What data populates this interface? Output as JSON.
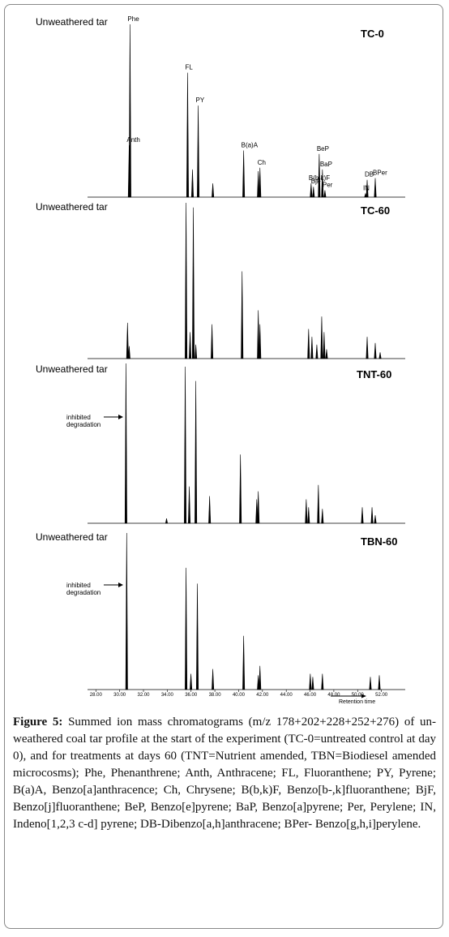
{
  "figure": {
    "xlim": [
      27.3,
      54
    ],
    "xticks": [
      {
        "value": 28,
        "label": "28.00"
      },
      {
        "value": 30,
        "label": "30.00"
      },
      {
        "value": 32,
        "label": "32.00"
      },
      {
        "value": 34,
        "label": "34.00"
      },
      {
        "value": 36,
        "label": "36.00"
      },
      {
        "value": 38,
        "label": "38.00"
      },
      {
        "value": 40,
        "label": "40.00"
      },
      {
        "value": 42,
        "label": "42.00"
      },
      {
        "value": 44,
        "label": "44.00"
      },
      {
        "value": 46,
        "label": "46.00"
      },
      {
        "value": 48,
        "label": "48.00"
      },
      {
        "value": 50,
        "label": "50.00"
      },
      {
        "value": 52,
        "label": "52.00"
      }
    ],
    "x_axis_label": "Retention time",
    "panels": [
      {
        "sample_label": "Unweathered tar",
        "name": "TC-0",
        "peaks": [
          {
            "x": 30.87,
            "height": 100,
            "label": "Phe"
          },
          {
            "x": 30.8,
            "height": 30,
            "label": "Anth"
          },
          {
            "x": 35.71,
            "height": 72,
            "label": "FL"
          },
          {
            "x": 36.12,
            "height": 16
          },
          {
            "x": 36.6,
            "height": 53,
            "label": "PY"
          },
          {
            "x": 37.83,
            "height": 8
          },
          {
            "x": 40.42,
            "height": 27,
            "label": "B(a)A"
          },
          {
            "x": 41.65,
            "height": 15
          },
          {
            "x": 41.79,
            "height": 17,
            "label": "Ch"
          },
          {
            "x": 46.09,
            "height": 8,
            "label": "B(b,k)F"
          },
          {
            "x": 46.29,
            "height": 6,
            "label": "BjF"
          },
          {
            "x": 46.77,
            "height": 25,
            "label": "BeP"
          },
          {
            "x": 47.04,
            "height": 16,
            "label": "BaP"
          },
          {
            "x": 47.25,
            "height": 4,
            "label": "Per"
          },
          {
            "x": 50.66,
            "height": 2,
            "label": "IN"
          },
          {
            "x": 50.8,
            "height": 10,
            "label": "DB"
          },
          {
            "x": 51.48,
            "height": 11,
            "label": "BPer"
          }
        ]
      },
      {
        "sample_label": "Unweathered tar",
        "name": "TC-60",
        "peaks": [
          {
            "x": 30.66,
            "height": 23
          },
          {
            "x": 30.8,
            "height": 8
          },
          {
            "x": 35.58,
            "height": 100
          },
          {
            "x": 35.92,
            "height": 17
          },
          {
            "x": 36.19,
            "height": 97
          },
          {
            "x": 36.4,
            "height": 9
          },
          {
            "x": 37.76,
            "height": 22
          },
          {
            "x": 40.29,
            "height": 56
          },
          {
            "x": 41.65,
            "height": 31
          },
          {
            "x": 41.79,
            "height": 22
          },
          {
            "x": 45.88,
            "height": 19
          },
          {
            "x": 46.16,
            "height": 14
          },
          {
            "x": 46.57,
            "height": 9
          },
          {
            "x": 46.98,
            "height": 27
          },
          {
            "x": 47.18,
            "height": 17
          },
          {
            "x": 47.39,
            "height": 6
          },
          {
            "x": 50.8,
            "height": 14
          },
          {
            "x": 51.48,
            "height": 10
          },
          {
            "x": 51.89,
            "height": 4
          }
        ]
      },
      {
        "sample_label": "Unweathered tar",
        "name": "TNT-60",
        "annotation": "inhibited degradation",
        "peaks": [
          {
            "x": 30.53,
            "height": 100
          },
          {
            "x": 33.94,
            "height": 3
          },
          {
            "x": 35.51,
            "height": 98
          },
          {
            "x": 35.85,
            "height": 23
          },
          {
            "x": 36.4,
            "height": 89
          },
          {
            "x": 37.56,
            "height": 17
          },
          {
            "x": 40.15,
            "height": 43
          },
          {
            "x": 41.52,
            "height": 15
          },
          {
            "x": 41.65,
            "height": 20
          },
          {
            "x": 45.68,
            "height": 15
          },
          {
            "x": 45.88,
            "height": 10
          },
          {
            "x": 46.7,
            "height": 24
          },
          {
            "x": 47.04,
            "height": 9
          },
          {
            "x": 50.39,
            "height": 10
          },
          {
            "x": 51.21,
            "height": 10
          },
          {
            "x": 51.48,
            "height": 5
          }
        ]
      },
      {
        "sample_label": "Unweathered tar",
        "name": "TBN-60",
        "annotation": "inhibited degradation",
        "peaks": [
          {
            "x": 30.59,
            "height": 99
          },
          {
            "x": 35.58,
            "height": 77
          },
          {
            "x": 35.99,
            "height": 10
          },
          {
            "x": 36.53,
            "height": 67
          },
          {
            "x": 37.83,
            "height": 13
          },
          {
            "x": 40.42,
            "height": 34
          },
          {
            "x": 41.65,
            "height": 9
          },
          {
            "x": 41.79,
            "height": 15
          },
          {
            "x": 46.02,
            "height": 10
          },
          {
            "x": 46.23,
            "height": 8
          },
          {
            "x": 47.04,
            "height": 10
          },
          {
            "x": 51.07,
            "height": 8
          },
          {
            "x": 51.82,
            "height": 9
          }
        ]
      }
    ]
  },
  "caption": {
    "label": "Figure 5:",
    "text": "Summed ion mass chromatograms (m/z 178+202+228+252+276) of un-weathered coal tar profile at the start of the experiment (TC-0=untreated control at day 0), and for treatments at days 60 (TNT=Nutrient amended, TBN=Biodiesel amended microcosms); Phe, Phenanthrene; Anth, Anthracene; FL, Fluoranthene; PY, Pyrene; B(a)A, Benzo[a]anthracence; Ch, Chrysene; B(b,k)F, Benzo[b-,k]fluoranthene; BjF, Benzo[j]fluoranthene; BeP, Benzo[e]pyrene; BaP, Benzo[a]pyrene; Per, Perylene; IN, Indeno[1,2,3 c-d] pyrene; DB-Dibenzo[a,h]anthracene; BPer- Benzo[g,h,i]perylene."
  }
}
